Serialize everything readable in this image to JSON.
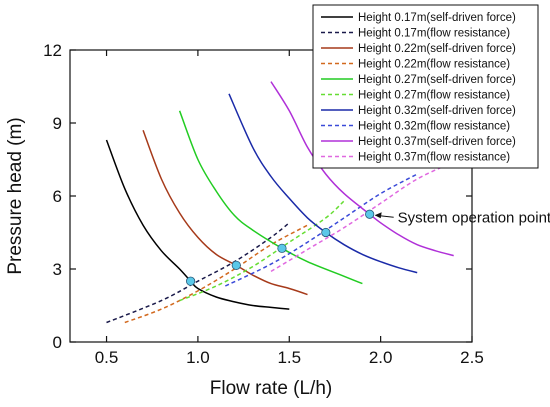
{
  "chart_data": {
    "type": "line",
    "xlabel": "Flow rate (L/h)",
    "ylabel": "Pressure head (m)",
    "xlim": [
      0.3,
      2.5
    ],
    "ylim": [
      0,
      12
    ],
    "xticks": [
      0.5,
      1.0,
      1.5,
      2.0,
      2.5
    ],
    "yticks": [
      0,
      3,
      6,
      9,
      12
    ],
    "xtick_labels": [
      "0.5",
      "1.0",
      "1.5",
      "2.0",
      "2.5"
    ],
    "ytick_labels": [
      "0",
      "3",
      "6",
      "9",
      "12"
    ],
    "grid": false,
    "legend_position": "top-right",
    "series": [
      {
        "name": "Height 0.17m(self-driven force)",
        "color": "#000000",
        "dash": "solid",
        "x": [
          0.5,
          0.6,
          0.7,
          0.8,
          0.9,
          0.96,
          1.0,
          1.1,
          1.2,
          1.3,
          1.4,
          1.5
        ],
        "y": [
          8.3,
          6.3,
          4.8,
          3.75,
          3.0,
          2.5,
          2.2,
          1.85,
          1.65,
          1.5,
          1.42,
          1.35
        ]
      },
      {
        "name": "Height 0.17m(flow resistance)",
        "color": "#1a1a4a",
        "dash": "dashed",
        "x": [
          0.5,
          0.8,
          1.0,
          1.2,
          1.4,
          1.5
        ],
        "y": [
          0.8,
          1.7,
          2.5,
          3.3,
          4.3,
          4.9
        ]
      },
      {
        "name": "Height 0.22m(self-driven force)",
        "color": "#a63a1a",
        "dash": "solid",
        "x": [
          0.7,
          0.8,
          0.9,
          1.0,
          1.1,
          1.21,
          1.3,
          1.4,
          1.5,
          1.6
        ],
        "y": [
          8.7,
          6.7,
          5.3,
          4.3,
          3.6,
          3.15,
          2.75,
          2.4,
          2.2,
          1.95
        ]
      },
      {
        "name": "Height 0.22m(flow resistance)",
        "color": "#d2691e",
        "dash": "dashed",
        "x": [
          0.6,
          0.8,
          1.0,
          1.2,
          1.4,
          1.6
        ],
        "y": [
          0.8,
          1.35,
          2.1,
          3.0,
          4.0,
          4.8
        ]
      },
      {
        "name": "Height 0.27m(self-driven force)",
        "color": "#22cc22",
        "dash": "solid",
        "x": [
          0.9,
          1.0,
          1.1,
          1.2,
          1.3,
          1.46,
          1.6,
          1.8,
          1.9
        ],
        "y": [
          9.5,
          7.5,
          6.2,
          5.2,
          4.6,
          3.85,
          3.3,
          2.7,
          2.4
        ]
      },
      {
        "name": "Height 0.27m(flow resistance)",
        "color": "#66dd33",
        "dash": "dashed",
        "x": [
          0.9,
          1.1,
          1.3,
          1.5,
          1.7,
          1.8
        ],
        "y": [
          1.7,
          2.3,
          3.1,
          4.1,
          5.1,
          5.8
        ]
      },
      {
        "name": "Height 0.32m(self-driven force)",
        "color": "#1a2aa8",
        "dash": "solid",
        "x": [
          1.17,
          1.3,
          1.4,
          1.5,
          1.6,
          1.7,
          1.8,
          1.9,
          2.0,
          2.1,
          2.2
        ],
        "y": [
          10.2,
          8.0,
          6.8,
          5.9,
          5.1,
          4.5,
          4.0,
          3.6,
          3.3,
          3.05,
          2.85
        ]
      },
      {
        "name": "Height 0.32m(flow resistance)",
        "color": "#3a4ad8",
        "dash": "dashed",
        "x": [
          1.15,
          1.4,
          1.6,
          1.8,
          2.0,
          2.2
        ],
        "y": [
          2.3,
          3.2,
          4.1,
          5.1,
          6.1,
          6.9
        ]
      },
      {
        "name": "Height 0.37m(self-driven force)",
        "color": "#b030d8",
        "dash": "solid",
        "x": [
          1.4,
          1.5,
          1.6,
          1.7,
          1.8,
          1.94,
          2.0,
          2.1,
          2.2,
          2.3,
          2.4
        ],
        "y": [
          10.7,
          9.5,
          8.0,
          6.9,
          6.1,
          5.25,
          4.9,
          4.4,
          4.0,
          3.75,
          3.55
        ]
      },
      {
        "name": "Height 0.37m(flow resistance)",
        "color": "#e068e0",
        "dash": "dashed",
        "x": [
          1.4,
          1.6,
          1.8,
          2.0,
          2.2,
          2.4
        ],
        "y": [
          2.9,
          3.8,
          4.7,
          5.7,
          6.7,
          7.4
        ]
      }
    ],
    "operation_points": [
      {
        "x": 0.96,
        "y": 2.5
      },
      {
        "x": 1.21,
        "y": 3.15
      },
      {
        "x": 1.46,
        "y": 3.85
      },
      {
        "x": 1.7,
        "y": 4.5
      },
      {
        "x": 1.94,
        "y": 5.25
      }
    ],
    "operation_point_color": "#5bc8e8",
    "annotation": {
      "text": "System operation point",
      "x": 1.94,
      "y": 5.25
    }
  }
}
